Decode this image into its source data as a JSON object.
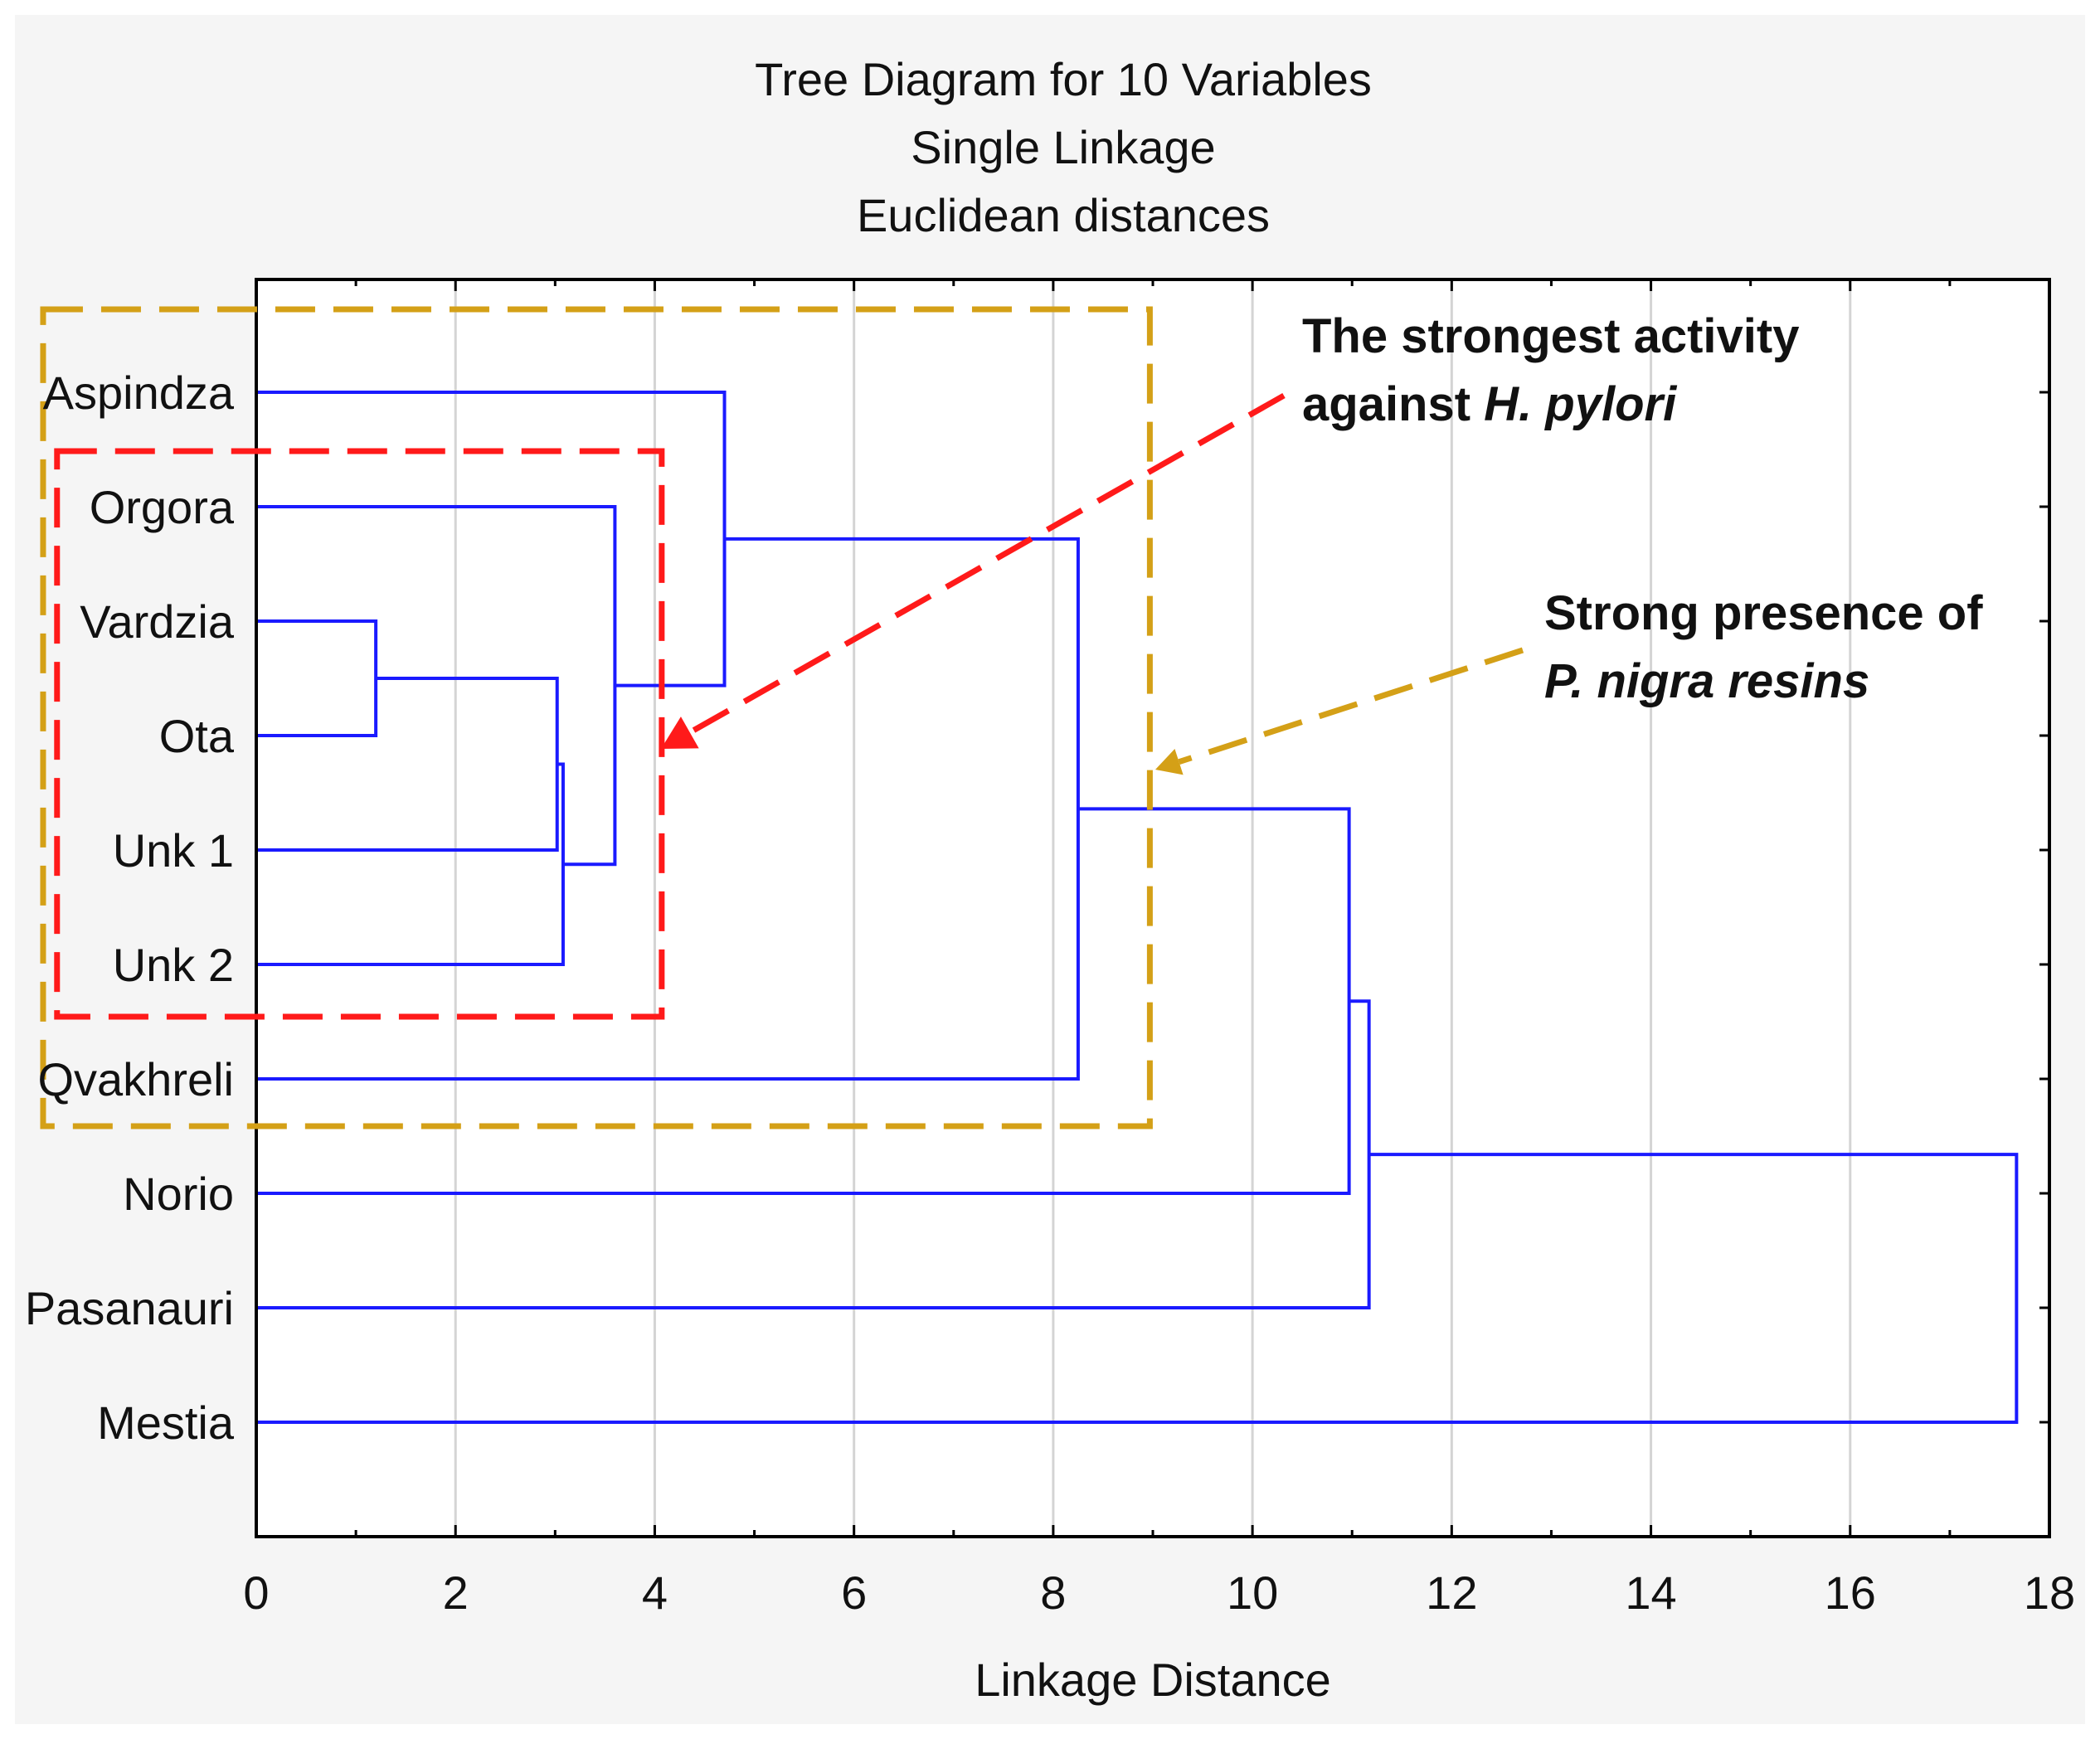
{
  "chart_data": {
    "type": "dendrogram",
    "title": "Tree Diagram for 10 Variables",
    "subtitle_lines": [
      "Single Linkage",
      "Euclidean distances"
    ],
    "xlabel": "Linkage Distance",
    "xlim": [
      0,
      18
    ],
    "x_ticks": [
      0,
      2,
      4,
      6,
      8,
      10,
      12,
      14,
      16,
      18
    ],
    "grid": true,
    "link_color": "#1a1aff",
    "leaves": [
      "Aspindza",
      "Orgora",
      "Vardzia",
      "Ota",
      "Unk 1",
      "Unk 2",
      "Qvakhreli",
      "Norio",
      "Pasanauri",
      "Mestia"
    ],
    "merges": [
      {
        "id": "c1",
        "children": [
          "Vardzia",
          "Ota"
        ],
        "distance": 1.2
      },
      {
        "id": "c2",
        "children": [
          "c1",
          "Unk 1"
        ],
        "distance": 3.02
      },
      {
        "id": "c3",
        "children": [
          "c2",
          "Unk 2"
        ],
        "distance": 3.08
      },
      {
        "id": "c4",
        "children": [
          "Orgora",
          "c3"
        ],
        "distance": 3.6
      },
      {
        "id": "c5",
        "children": [
          "Aspindza",
          "c4"
        ],
        "distance": 4.7
      },
      {
        "id": "c6",
        "children": [
          "c5",
          "Qvakhreli"
        ],
        "distance": 8.25
      },
      {
        "id": "c7",
        "children": [
          "c6",
          "Norio"
        ],
        "distance": 10.97
      },
      {
        "id": "c8",
        "children": [
          "c7",
          "Pasanauri"
        ],
        "distance": 11.17
      },
      {
        "id": "c9",
        "children": [
          "c8",
          "Mestia"
        ],
        "distance": 17.67
      }
    ],
    "annotations": [
      {
        "lines": [
          "The strongest activity",
          "against |H. pylori|"
        ],
        "color": "#ff1a1a",
        "encloses": [
          "Orgora",
          "Vardzia",
          "Ota",
          "Unk 1",
          "Unk 2"
        ],
        "box_x_range": [
          -2.0,
          4.07
        ]
      },
      {
        "lines": [
          "Strong presence of",
          "|P. nigra resins|"
        ],
        "color": "#d4a017",
        "encloses": [
          "Aspindza",
          "Orgora",
          "Vardzia",
          "Ota",
          "Unk 1",
          "Unk 2",
          "Qvakhreli"
        ],
        "box_x_range": [
          -2.14,
          8.97
        ]
      }
    ]
  }
}
